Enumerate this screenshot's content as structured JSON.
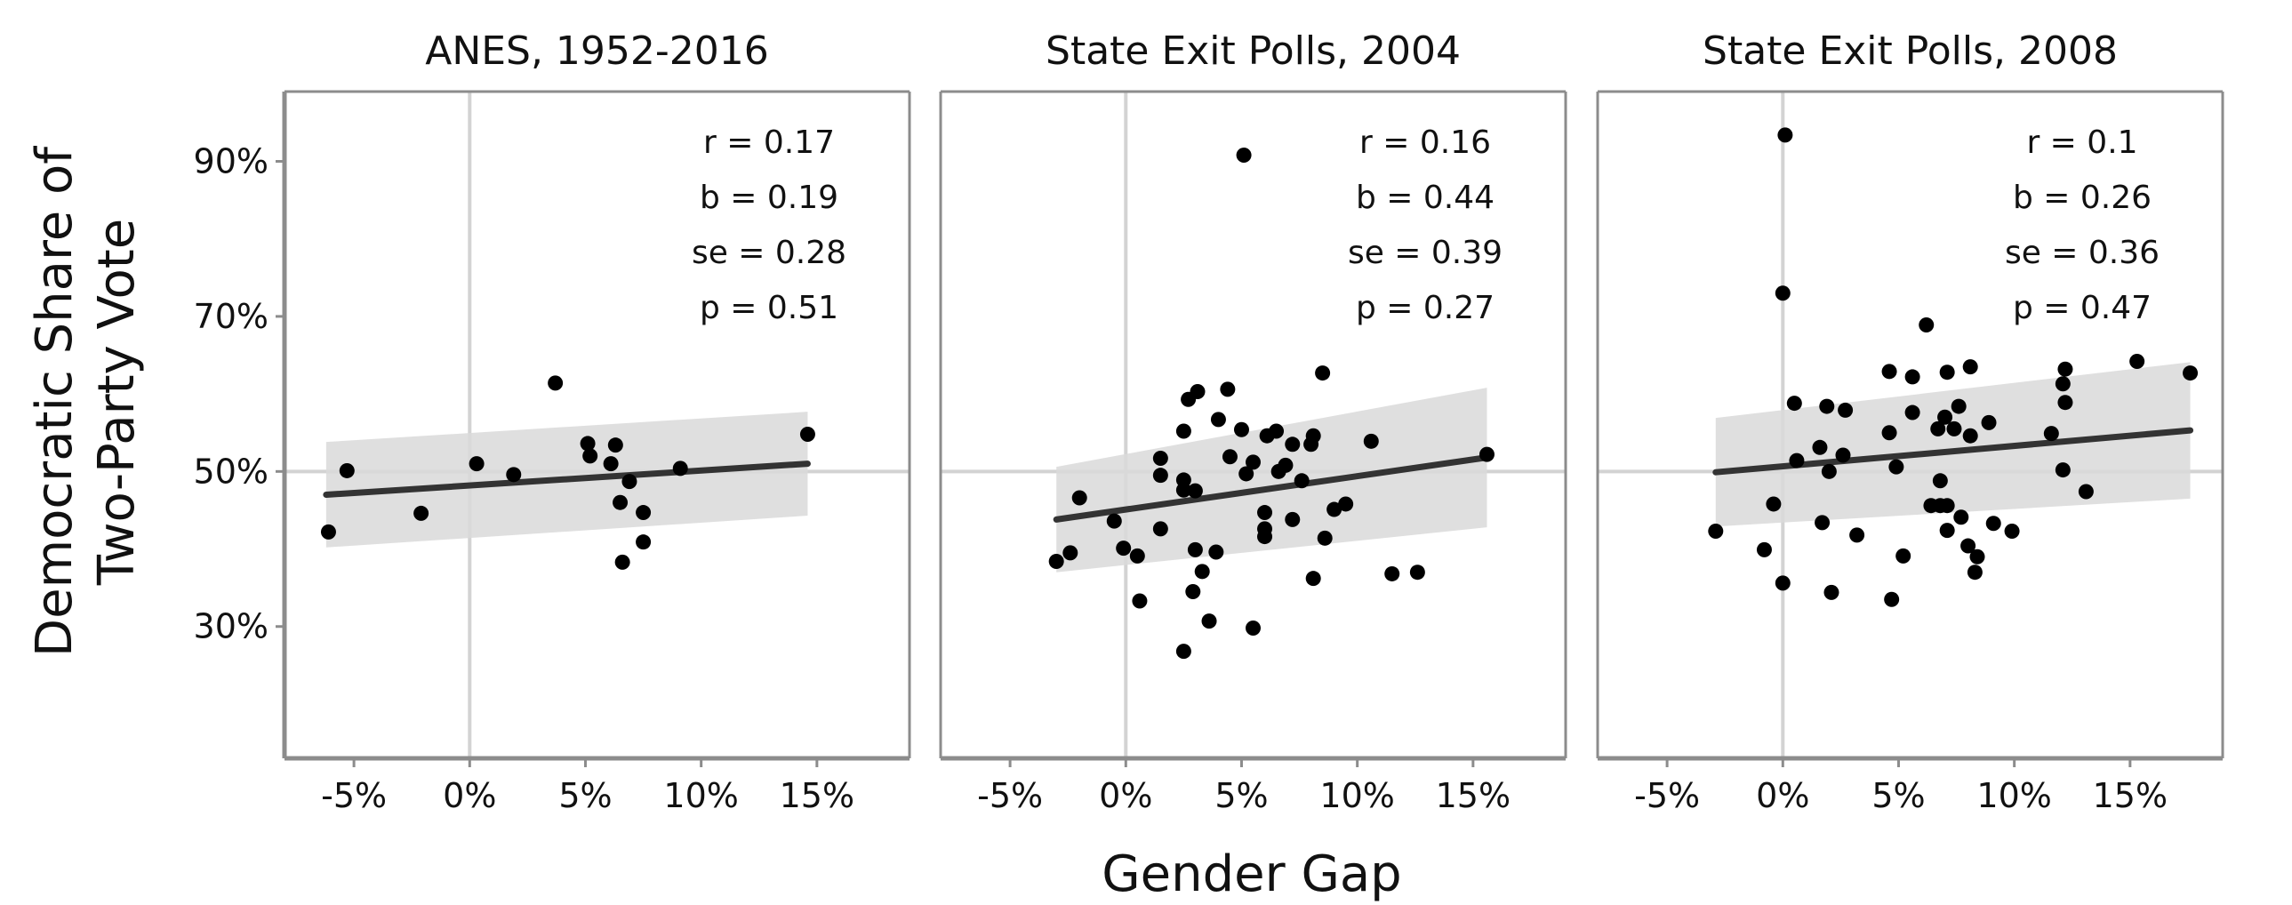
{
  "chart_data": {
    "type": "scatter",
    "xlabel": "Gender Gap",
    "ylabel_lines": [
      "Democratic Share of",
      "Two-Party Vote"
    ],
    "xlim": [
      -8,
      19
    ],
    "ylim": [
      13,
      99
    ],
    "x_ticks": [
      -5,
      0,
      5,
      10,
      15
    ],
    "x_tick_labels": [
      "-5%",
      "0%",
      "5%",
      "10%",
      "15%"
    ],
    "y_ticks": [
      30,
      50,
      70,
      90
    ],
    "y_tick_labels": [
      "30%",
      "50%",
      "70%",
      "90%"
    ],
    "reference_lines": {
      "x": 0,
      "y": 50
    },
    "colors": {
      "points": "#000000",
      "fit_line": "#333333",
      "confidence_band": "#d9d9d9",
      "reference": "#d3d3d3",
      "frame": "#8c8c8c"
    },
    "panels": [
      {
        "title": "ANES, 1952-2016",
        "stats": [
          "r = 0.17",
          "b = 0.19",
          "se = 0.28",
          "p = 0.51"
        ],
        "fit": {
          "x": [
            -6.2,
            14.6
          ],
          "y": [
            47.0,
            51.0
          ]
        },
        "band": {
          "x": [
            -6.2,
            14.6
          ],
          "lower": [
            40.2,
            44.3
          ],
          "upper": [
            53.8,
            57.7
          ]
        },
        "points": [
          [
            -6.1,
            42.2
          ],
          [
            -5.3,
            50.1
          ],
          [
            -2.1,
            44.6
          ],
          [
            0.3,
            51.0
          ],
          [
            1.9,
            49.6
          ],
          [
            3.7,
            61.4
          ],
          [
            5.1,
            53.6
          ],
          [
            5.2,
            52.0
          ],
          [
            6.1,
            51.0
          ],
          [
            6.3,
            53.4
          ],
          [
            6.5,
            46.0
          ],
          [
            6.9,
            48.7
          ],
          [
            6.6,
            38.3
          ],
          [
            7.5,
            44.7
          ],
          [
            7.5,
            40.9
          ],
          [
            9.1,
            50.4
          ],
          [
            14.6,
            54.8
          ]
        ]
      },
      {
        "title": "State Exit Polls, 2004",
        "stats": [
          "r = 0.16",
          "b = 0.44",
          "se = 0.39",
          "p = 0.27"
        ],
        "fit": {
          "x": [
            -3.0,
            15.6
          ],
          "y": [
            43.8,
            51.8
          ]
        },
        "band": {
          "x": [
            -3.0,
            15.6
          ],
          "lower": [
            37.0,
            42.8
          ],
          "upper": [
            50.6,
            60.8
          ]
        },
        "points": [
          [
            5.1,
            90.8
          ],
          [
            8.5,
            62.7
          ],
          [
            3.1,
            60.3
          ],
          [
            4.4,
            60.6
          ],
          [
            2.7,
            59.3
          ],
          [
            4.0,
            56.7
          ],
          [
            5.0,
            55.4
          ],
          [
            2.5,
            55.2
          ],
          [
            6.5,
            55.2
          ],
          [
            8.1,
            54.6
          ],
          [
            6.1,
            54.6
          ],
          [
            10.6,
            53.9
          ],
          [
            7.2,
            53.5
          ],
          [
            8.0,
            53.5
          ],
          [
            1.5,
            51.7
          ],
          [
            4.5,
            51.9
          ],
          [
            5.5,
            51.2
          ],
          [
            6.9,
            50.8
          ],
          [
            6.6,
            50.0
          ],
          [
            5.2,
            49.7
          ],
          [
            1.5,
            49.5
          ],
          [
            2.5,
            48.9
          ],
          [
            7.6,
            48.8
          ],
          [
            3.0,
            47.5
          ],
          [
            2.5,
            47.6
          ],
          [
            -2.0,
            46.6
          ],
          [
            9.5,
            45.8
          ],
          [
            9.0,
            45.1
          ],
          [
            6.0,
            44.7
          ],
          [
            7.2,
            43.8
          ],
          [
            -0.5,
            43.6
          ],
          [
            1.5,
            42.6
          ],
          [
            6.0,
            42.6
          ],
          [
            6.0,
            41.6
          ],
          [
            8.6,
            41.4
          ],
          [
            -0.1,
            40.1
          ],
          [
            3.0,
            39.9
          ],
          [
            3.9,
            39.6
          ],
          [
            -2.4,
            39.5
          ],
          [
            0.5,
            39.1
          ],
          [
            -3.0,
            38.4
          ],
          [
            3.3,
            37.1
          ],
          [
            11.5,
            36.8
          ],
          [
            12.6,
            37.0
          ],
          [
            8.1,
            36.2
          ],
          [
            2.9,
            34.5
          ],
          [
            0.6,
            33.3
          ],
          [
            3.6,
            30.7
          ],
          [
            5.5,
            29.8
          ],
          [
            2.5,
            26.8
          ],
          [
            15.6,
            52.2
          ]
        ]
      },
      {
        "title": "State Exit Polls, 2008",
        "stats": [
          "r = 0.1",
          "b = 0.26",
          "se = 0.36",
          "p = 0.47"
        ],
        "fit": {
          "x": [
            -2.9,
            17.6
          ],
          "y": [
            49.9,
            55.3
          ]
        },
        "band": {
          "x": [
            -2.9,
            17.6
          ],
          "lower": [
            42.9,
            46.5
          ],
          "upper": [
            56.9,
            64.1
          ]
        },
        "points": [
          [
            0.1,
            93.4
          ],
          [
            0.0,
            73.0
          ],
          [
            6.2,
            68.9
          ],
          [
            15.3,
            64.2
          ],
          [
            8.1,
            63.5
          ],
          [
            12.2,
            63.2
          ],
          [
            4.6,
            62.9
          ],
          [
            7.1,
            62.8
          ],
          [
            17.6,
            62.7
          ],
          [
            5.6,
            62.2
          ],
          [
            12.1,
            61.3
          ],
          [
            0.5,
            58.8
          ],
          [
            12.2,
            58.9
          ],
          [
            1.9,
            58.4
          ],
          [
            7.6,
            58.4
          ],
          [
            2.7,
            57.9
          ],
          [
            5.6,
            57.6
          ],
          [
            7.0,
            57.0
          ],
          [
            8.9,
            56.3
          ],
          [
            6.7,
            55.5
          ],
          [
            7.4,
            55.5
          ],
          [
            4.6,
            55.0
          ],
          [
            8.1,
            54.6
          ],
          [
            11.6,
            54.9
          ],
          [
            1.6,
            53.1
          ],
          [
            2.6,
            52.1
          ],
          [
            0.6,
            51.4
          ],
          [
            4.9,
            50.6
          ],
          [
            2.0,
            50.0
          ],
          [
            12.1,
            50.2
          ],
          [
            6.8,
            48.8
          ],
          [
            13.1,
            47.4
          ],
          [
            -0.4,
            45.8
          ],
          [
            6.4,
            45.6
          ],
          [
            6.8,
            45.6
          ],
          [
            7.1,
            45.6
          ],
          [
            7.7,
            44.1
          ],
          [
            1.7,
            43.4
          ],
          [
            9.1,
            43.3
          ],
          [
            7.1,
            42.4
          ],
          [
            9.9,
            42.3
          ],
          [
            -2.9,
            42.3
          ],
          [
            3.2,
            41.8
          ],
          [
            8.0,
            40.4
          ],
          [
            -0.8,
            39.9
          ],
          [
            5.2,
            39.1
          ],
          [
            8.4,
            39.0
          ],
          [
            8.3,
            37.0
          ],
          [
            0.0,
            35.6
          ],
          [
            2.1,
            34.4
          ],
          [
            4.7,
            33.5
          ]
        ]
      }
    ]
  }
}
